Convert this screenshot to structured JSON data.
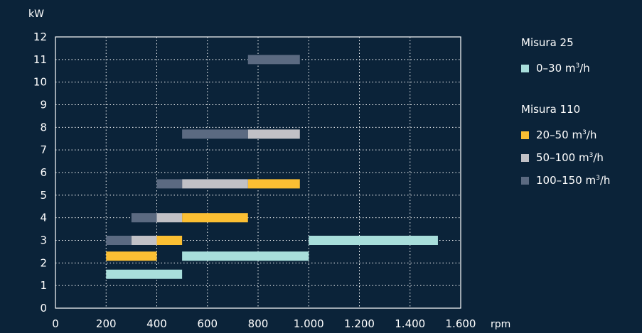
{
  "chart_data": {
    "type": "range-bar",
    "ylabel": "kW",
    "xlabel": "rpm",
    "xlim": [
      0,
      1600
    ],
    "ylim": [
      0,
      12
    ],
    "x_ticks": [
      0,
      200,
      400,
      600,
      800,
      1000,
      1200,
      1400,
      1600
    ],
    "x_tick_labels": [
      "0",
      "200",
      "400",
      "600",
      "800",
      "1.000",
      "1.200",
      "1.400",
      "1.600"
    ],
    "y_ticks": [
      0,
      1,
      2,
      3,
      4,
      5,
      6,
      7,
      8,
      9,
      10,
      11,
      12
    ],
    "y_tick_labels": [
      "0",
      "1",
      "2",
      "3",
      "4",
      "5",
      "6",
      "7",
      "8",
      "9",
      "10",
      "11",
      "12"
    ],
    "grid": true,
    "legend_position": "right",
    "legend": [
      {
        "title": "Misura 25",
        "items": [
          {
            "label": "0–30 m",
            "sup": "3",
            "suffix": "/h",
            "color": "#a8dedb"
          }
        ]
      },
      {
        "title": "Misura 110",
        "items": [
          {
            "label": "20–50 m",
            "sup": "3",
            "suffix": "/h",
            "color": "#fbbf33"
          },
          {
            "label": "50–100 m",
            "sup": "3",
            "suffix": "/h",
            "color": "#c1c1c6"
          },
          {
            "label": "100–150 m",
            "sup": "3",
            "suffix": "/h",
            "color": "#5b6a81"
          }
        ]
      }
    ],
    "series": [
      {
        "legend": "0–30 m³/h",
        "color": "#a8dedb",
        "bars": [
          {
            "y": 1.5,
            "x_start": 200,
            "x_end": 500
          },
          {
            "y": 2.3,
            "x_start": 500,
            "x_end": 1000
          },
          {
            "y": 3.0,
            "x_start": 1000,
            "x_end": 1510
          }
        ]
      },
      {
        "legend": "20–50 m³/h",
        "color": "#fbbf33",
        "bars": [
          {
            "y": 2.3,
            "x_start": 200,
            "x_end": 400
          },
          {
            "y": 3.0,
            "x_start": 400,
            "x_end": 500
          },
          {
            "y": 4.0,
            "x_start": 500,
            "x_end": 760
          },
          {
            "y": 5.5,
            "x_start": 760,
            "x_end": 965
          }
        ]
      },
      {
        "legend": "50–100 m³/h",
        "color": "#c1c1c6",
        "bars": [
          {
            "y": 3.0,
            "x_start": 300,
            "x_end": 400
          },
          {
            "y": 4.0,
            "x_start": 400,
            "x_end": 500
          },
          {
            "y": 5.5,
            "x_start": 500,
            "x_end": 760
          },
          {
            "y": 7.7,
            "x_start": 760,
            "x_end": 965
          }
        ]
      },
      {
        "legend": "100–150 m³/h",
        "color": "#5b6a81",
        "bars": [
          {
            "y": 3.0,
            "x_start": 200,
            "x_end": 300
          },
          {
            "y": 4.0,
            "x_start": 300,
            "x_end": 400
          },
          {
            "y": 5.5,
            "x_start": 400,
            "x_end": 500
          },
          {
            "y": 7.7,
            "x_start": 500,
            "x_end": 760
          },
          {
            "y": 11.0,
            "x_start": 760,
            "x_end": 965
          }
        ]
      }
    ]
  }
}
